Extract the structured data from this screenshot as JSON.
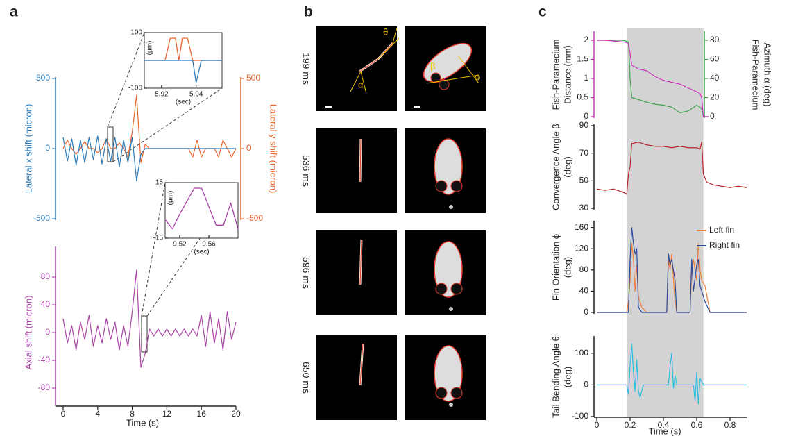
{
  "panel_labels": [
    "a",
    "b",
    "c"
  ],
  "image_grid": {
    "row_labels": [
      "199 ms",
      "536 ms",
      "596 ms",
      "650 ms"
    ],
    "angle_labels": [
      "α",
      "θ",
      "β",
      "ϕ"
    ]
  },
  "chart_data": [
    {
      "type": "line",
      "ylabel": [
        "Lateral x shift (micron)"
      ],
      "y2label": [
        "Lateral y shift (micron)"
      ],
      "xlim": [
        0,
        20
      ],
      "ylim": [
        -500,
        500
      ],
      "yticks": [
        -500,
        0,
        500
      ],
      "y2lim": [
        -500,
        500
      ],
      "y2ticks": [
        -500,
        0,
        500
      ],
      "axis_color": "#2b7bba",
      "y2_axis_color": "#e8652d",
      "x": [
        0,
        0.5,
        1,
        1.5,
        2,
        2.5,
        3,
        3.5,
        4,
        4.5,
        5,
        5.5,
        6,
        6.5,
        7,
        7.5,
        8,
        8.5,
        9,
        9.5,
        10,
        10.5,
        11,
        11.5,
        12,
        12.5,
        13,
        13.5,
        14,
        14.5,
        15,
        15.5,
        16,
        16.5,
        17,
        17.5,
        18,
        18.5,
        19,
        19.5,
        20
      ],
      "series": [
        {
          "color": "#e8652d",
          "axis": "y2",
          "values": [
            0,
            60,
            0,
            -40,
            0,
            50,
            0,
            0,
            -30,
            0,
            70,
            0,
            0,
            40,
            0,
            -60,
            120,
            380,
            -100,
            30,
            0,
            0,
            0,
            0,
            0,
            0,
            0,
            0,
            0,
            0,
            -60,
            60,
            -60,
            0,
            0,
            0,
            -60,
            60,
            0,
            -60,
            0
          ]
        },
        {
          "color": "#2b7bba",
          "values": [
            80,
            -90,
            70,
            -120,
            60,
            -100,
            80,
            -80,
            90,
            -110,
            70,
            -90,
            80,
            -130,
            60,
            -100,
            80,
            -230,
            -40,
            0,
            0,
            0,
            0,
            0,
            0,
            0,
            0,
            0,
            0,
            0,
            0,
            0,
            0,
            0,
            0,
            0,
            0,
            0,
            0,
            0,
            0
          ]
        }
      ]
    },
    {
      "type": "line",
      "xlabel": "(sec)",
      "ylabel": [
        "(μm)"
      ],
      "xlim": [
        5.91,
        5.955
      ],
      "xticks": [
        5.92,
        5.94
      ],
      "ylim": [
        -100,
        100
      ],
      "yticks": [
        -100,
        100
      ],
      "x": [
        5.91,
        5.92,
        5.922,
        5.925,
        5.928,
        5.93,
        5.932,
        5.935,
        5.938,
        5.94,
        5.943,
        5.946,
        5.955
      ],
      "series": [
        {
          "color": "#e8652d",
          "values": [
            0,
            0,
            0,
            80,
            80,
            0,
            80,
            80,
            0,
            0,
            0,
            0,
            0
          ]
        },
        {
          "color": "#2b7bba",
          "values": [
            0,
            0,
            0,
            0,
            0,
            0,
            0,
            0,
            0,
            -80,
            0,
            0,
            0
          ]
        }
      ]
    },
    {
      "type": "line",
      "xlabel": "Time (s)",
      "ylabel": [
        "Axial shift (micron)"
      ],
      "xlim": [
        0,
        20
      ],
      "xticks": [
        0,
        4,
        8,
        12,
        16,
        20
      ],
      "ylim": [
        -100,
        100
      ],
      "yticks": [
        -80,
        -40,
        0,
        40,
        80
      ],
      "axis_color": "#a842a6",
      "x": [
        0,
        0.5,
        1,
        1.5,
        2,
        2.5,
        3,
        3.5,
        4,
        4.5,
        5,
        5.5,
        6,
        6.5,
        7,
        7.5,
        8,
        8.5,
        9,
        9.5,
        10,
        10.5,
        11,
        11.5,
        12,
        12.5,
        13,
        13.5,
        14,
        14.5,
        15,
        15.5,
        16,
        16.5,
        17,
        17.5,
        18,
        18.5,
        19,
        19.5,
        20
      ],
      "series": [
        {
          "color": "#a842a6",
          "values": [
            20,
            -15,
            10,
            -25,
            15,
            -10,
            25,
            -20,
            10,
            -15,
            20,
            -10,
            15,
            -25,
            10,
            -20,
            30,
            90,
            -50,
            -30,
            5,
            -5,
            5,
            -5,
            5,
            -5,
            5,
            -5,
            5,
            -5,
            5,
            -5,
            25,
            -20,
            30,
            -15,
            20,
            -25,
            30,
            -10,
            15
          ]
        }
      ]
    },
    {
      "type": "line",
      "xlabel": "(sec)",
      "ylabel": [
        "(μm)"
      ],
      "xlim": [
        9.5,
        9.6
      ],
      "xticks": [
        9.52,
        9.56
      ],
      "ylim": [
        -15,
        15
      ],
      "yticks": [
        -15,
        15
      ],
      "x": [
        9.5,
        9.51,
        9.52,
        9.53,
        9.54,
        9.55,
        9.56,
        9.57,
        9.58,
        9.59,
        9.6
      ],
      "series": [
        {
          "color": "#a842a6",
          "values": [
            -5,
            -10,
            -2,
            5,
            12,
            12,
            2,
            -8,
            -8,
            4,
            -10
          ]
        }
      ]
    },
    {
      "type": "line",
      "ylabel": [
        "Fish-Paramecium",
        "Distance (mm)"
      ],
      "y2label": [
        "Fish-Paramecium",
        "Azimuth α (deg)"
      ],
      "xlim": [
        0,
        0.9
      ],
      "ylim": [
        0,
        2.2
      ],
      "yticks": [
        0,
        0.5,
        1,
        1.5,
        2
      ],
      "y2lim": [
        0,
        88
      ],
      "y2ticks": [
        0,
        20,
        40,
        60,
        80
      ],
      "axis_color": "#cc33bb",
      "y2_axis_color": "#3fa34d",
      "shaded_region": [
        0.18,
        0.64
      ],
      "x": [
        0,
        0.05,
        0.1,
        0.15,
        0.18,
        0.19,
        0.2,
        0.21,
        0.25,
        0.3,
        0.35,
        0.4,
        0.45,
        0.5,
        0.55,
        0.6,
        0.62,
        0.63,
        0.64,
        0.67
      ],
      "series": [
        {
          "color": "#3fa34d",
          "axis": "y2",
          "values": [
            80,
            80,
            80,
            80,
            79,
            78,
            40,
            20,
            18,
            15,
            13,
            12,
            10,
            4,
            6,
            12,
            10,
            8,
            0,
            0
          ]
        },
        {
          "color": "#cc33bb",
          "values": [
            2,
            2,
            1.98,
            1.96,
            1.94,
            1.9,
            1.65,
            1.35,
            1.25,
            1.2,
            1.05,
            0.95,
            0.9,
            0.85,
            0.75,
            0.65,
            0.6,
            0.5,
            0,
            0
          ]
        }
      ]
    },
    {
      "type": "line",
      "ylabel": [
        "Convergence Angle β",
        "(deg)"
      ],
      "xlim": [
        0,
        0.9
      ],
      "ylim": [
        30,
        90
      ],
      "yticks": [
        30,
        50,
        70,
        90
      ],
      "shaded_region": [
        0.18,
        0.64
      ],
      "x": [
        0,
        0.05,
        0.1,
        0.15,
        0.17,
        0.18,
        0.19,
        0.2,
        0.21,
        0.25,
        0.3,
        0.35,
        0.4,
        0.45,
        0.5,
        0.55,
        0.6,
        0.62,
        0.63,
        0.64,
        0.66,
        0.7,
        0.75,
        0.8,
        0.85,
        0.9
      ],
      "series": [
        {
          "color": "#b5252b",
          "values": [
            44,
            43,
            44,
            42,
            41,
            40,
            55,
            60,
            77,
            78,
            76,
            75,
            75,
            74,
            75,
            74,
            74,
            73,
            78,
            55,
            49,
            47,
            46,
            45,
            46,
            45
          ]
        }
      ]
    },
    {
      "type": "line",
      "ylabel": [
        "Fin Orientation ϕ",
        "(deg)"
      ],
      "xlim": [
        0,
        0.9
      ],
      "ylim": [
        0,
        170
      ],
      "yticks": [
        0,
        40,
        80,
        120,
        160
      ],
      "shaded_region": [
        0.18,
        0.64
      ],
      "legend": "upper right",
      "x": [
        0,
        0.18,
        0.19,
        0.2,
        0.21,
        0.22,
        0.23,
        0.24,
        0.25,
        0.27,
        0.3,
        0.42,
        0.43,
        0.44,
        0.45,
        0.47,
        0.48,
        0.5,
        0.56,
        0.57,
        0.58,
        0.6,
        0.61,
        0.62,
        0.63,
        0.65,
        0.68,
        0.9
      ],
      "series": [
        {
          "name": "Left fin",
          "color": "#f07f3c",
          "values": [
            0,
            0,
            20,
            60,
            130,
            100,
            40,
            90,
            30,
            10,
            0,
            0,
            100,
            80,
            110,
            20,
            0,
            0,
            0,
            80,
            100,
            60,
            130,
            80,
            60,
            50,
            0,
            0
          ]
        },
        {
          "name": "Right fin",
          "color": "#2d4a9a",
          "values": [
            0,
            0,
            0,
            100,
            160,
            130,
            110,
            120,
            10,
            0,
            0,
            0,
            110,
            90,
            100,
            60,
            0,
            0,
            0,
            100,
            40,
            90,
            100,
            50,
            40,
            20,
            0,
            0
          ]
        }
      ]
    },
    {
      "type": "line",
      "xlabel": "Time (s)",
      "ylabel": [
        "Tail Bending Angle θ",
        "(deg)"
      ],
      "xlim": [
        0,
        0.9
      ],
      "xticks": [
        0,
        0.2,
        0.4,
        0.6,
        0.8
      ],
      "ylim": [
        -100,
        150
      ],
      "yticks": [
        -100,
        0,
        100
      ],
      "shaded_region": [
        0.18,
        0.64
      ],
      "x": [
        0,
        0.18,
        0.19,
        0.2,
        0.21,
        0.22,
        0.23,
        0.24,
        0.25,
        0.26,
        0.28,
        0.43,
        0.44,
        0.45,
        0.46,
        0.47,
        0.48,
        0.5,
        0.58,
        0.59,
        0.6,
        0.61,
        0.62,
        0.64,
        0.9
      ],
      "series": [
        {
          "color": "#29bde0",
          "values": [
            0,
            0,
            -30,
            60,
            130,
            40,
            -20,
            80,
            -20,
            -40,
            0,
            0,
            60,
            100,
            -10,
            30,
            0,
            0,
            0,
            -50,
            40,
            -60,
            20,
            0,
            0
          ]
        }
      ]
    }
  ]
}
